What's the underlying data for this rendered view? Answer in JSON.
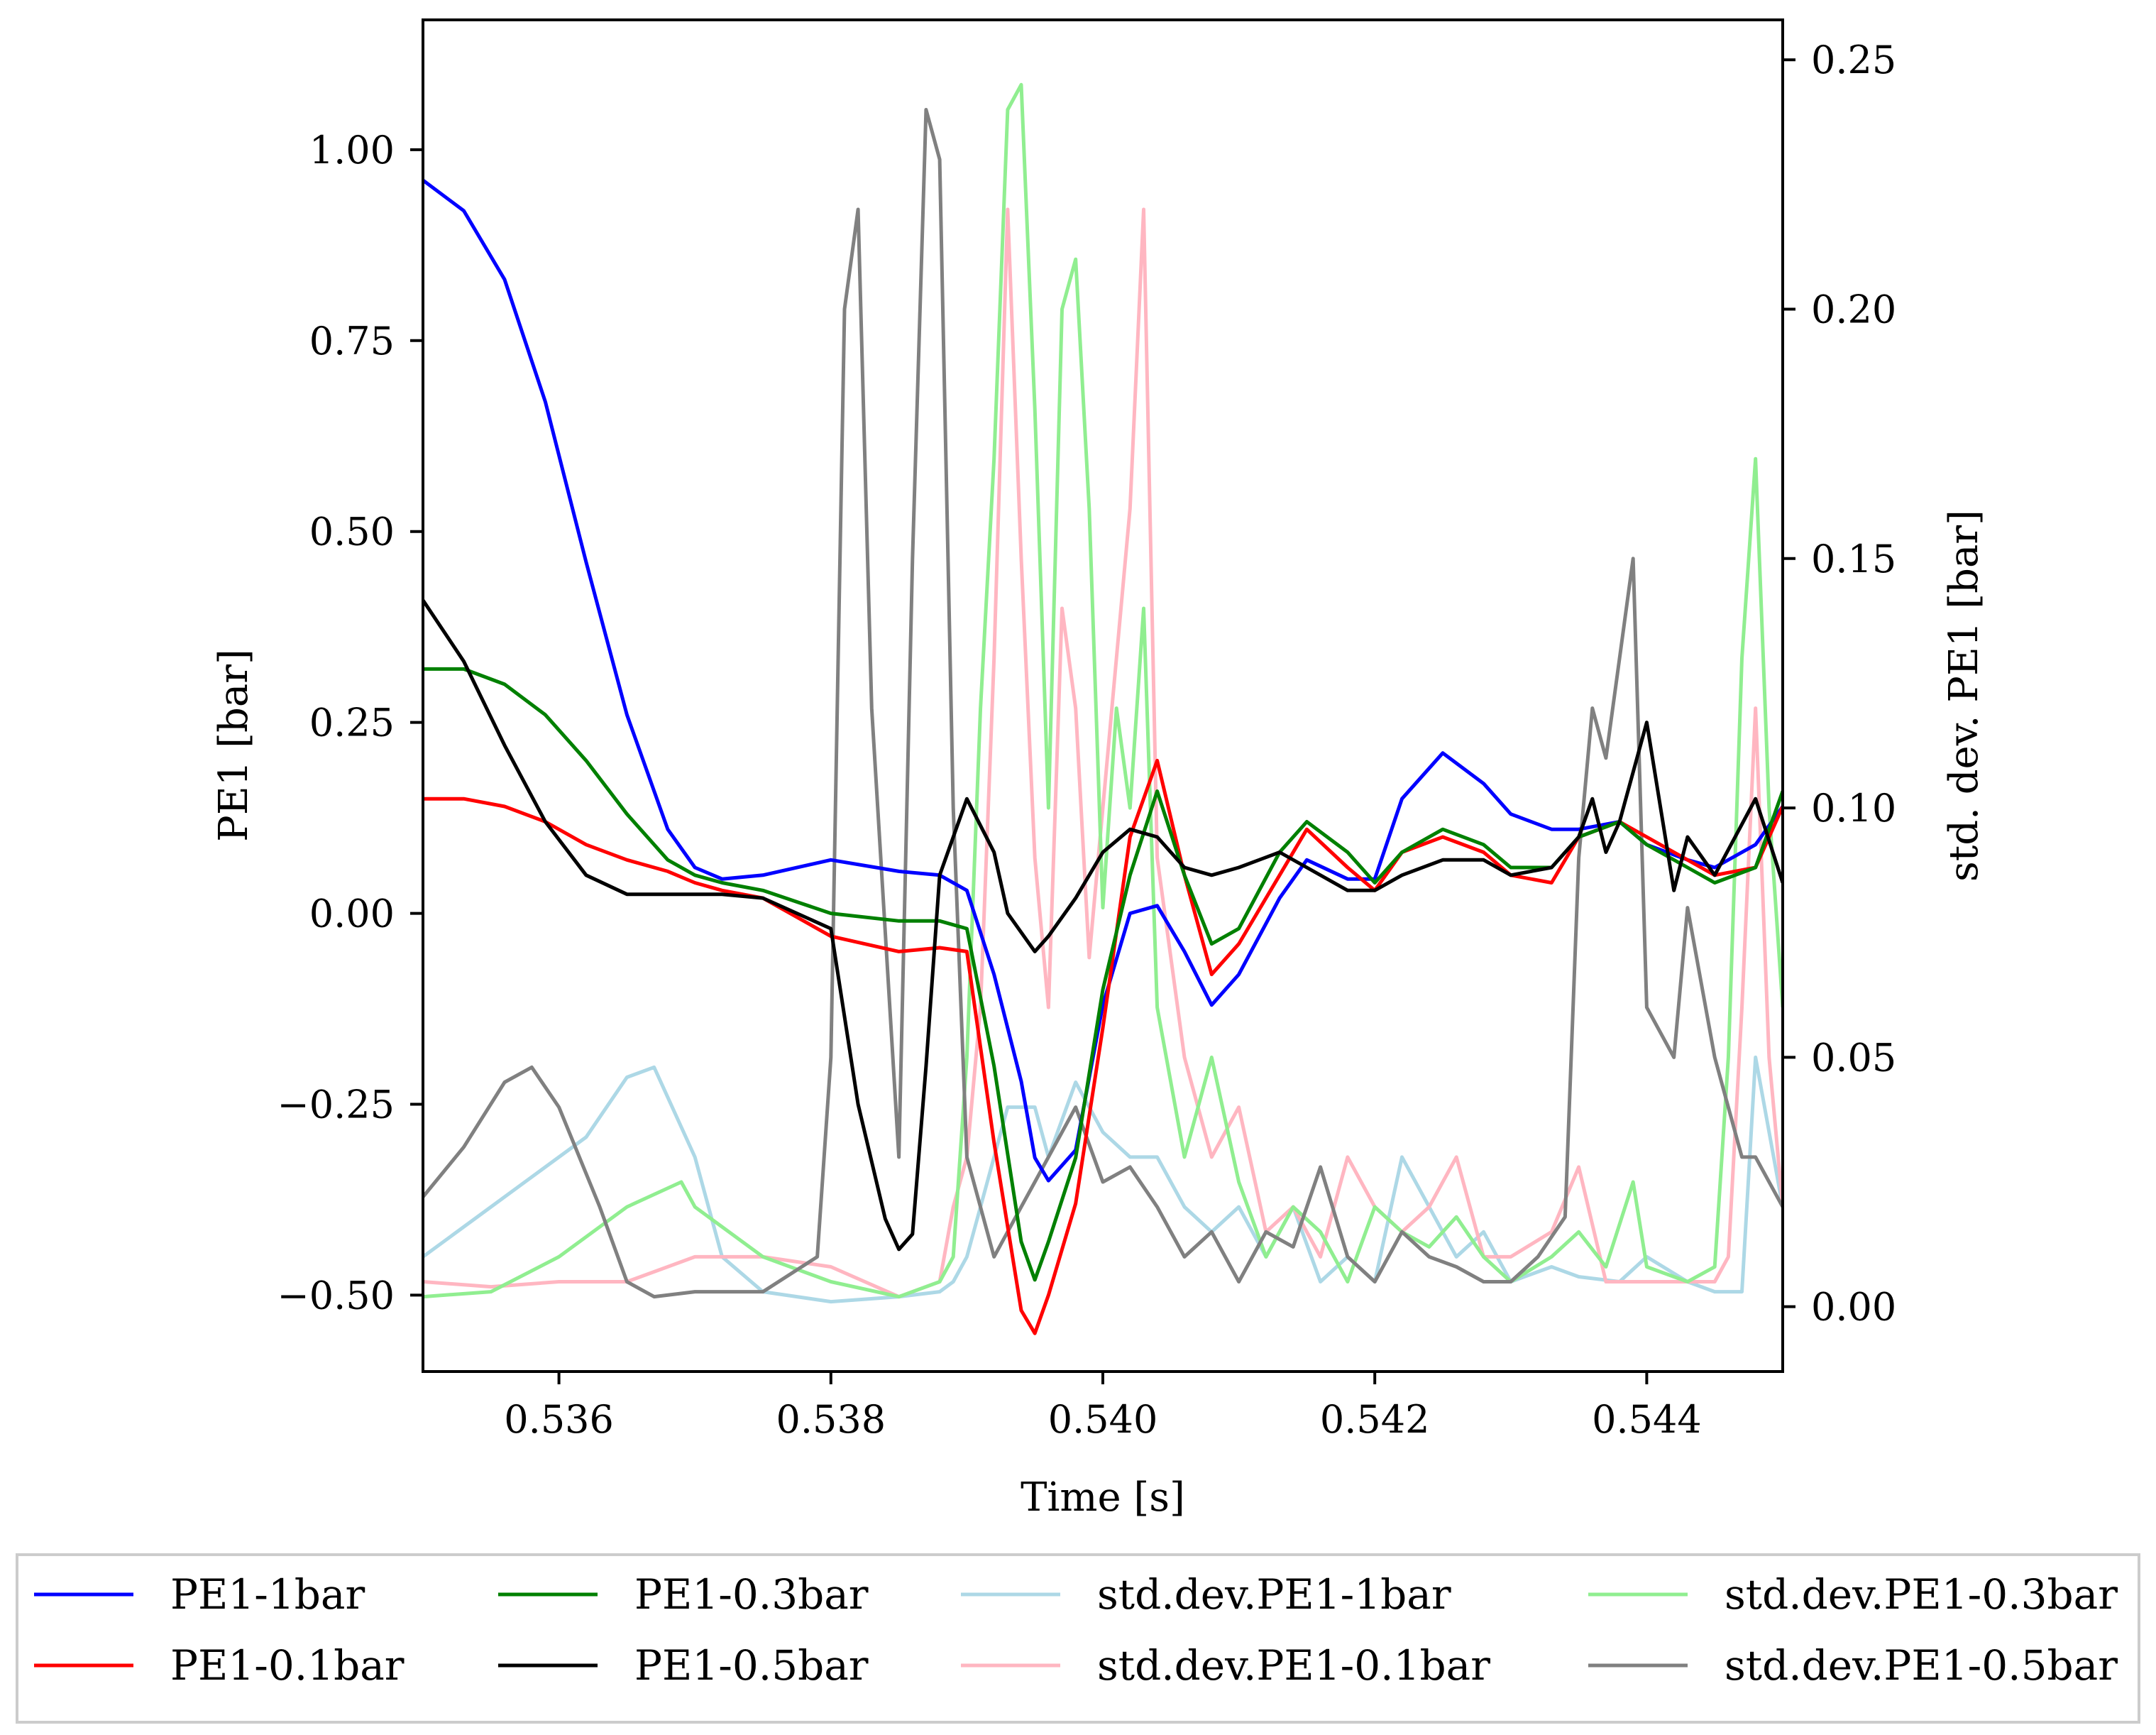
{
  "chart_data": {
    "type": "line",
    "title": "",
    "xlabel": "Time [s]",
    "ylabel": "PE1 [bar]",
    "ylabel_right": "std. dev. PE1 [bar]",
    "xlim": [
      0.535,
      0.545
    ],
    "ylim": [
      -0.6,
      1.17
    ],
    "ylim_right": [
      -0.013,
      0.258
    ],
    "x_ticks": [
      0.536,
      0.538,
      0.54,
      0.542,
      0.544
    ],
    "x_tick_labels": [
      "0.536",
      "0.538",
      "0.540",
      "0.542",
      "0.544"
    ],
    "y_ticks": [
      1.0,
      0.75,
      0.5,
      0.25,
      0.0,
      -0.25,
      -0.5
    ],
    "y_tick_labels": [
      "1.00",
      "0.75",
      "0.50",
      "0.25",
      "0.00",
      "−0.25",
      "−0.50"
    ],
    "y_right_ticks": [
      0.25,
      0.2,
      0.15,
      0.1,
      0.05,
      0.0
    ],
    "y_right_tick_labels": [
      "0.25",
      "0.20",
      "0.15",
      "0.10",
      "0.05",
      "0.00"
    ],
    "grid": false,
    "legend_position": "below",
    "series": [
      {
        "name": "PE1-1bar",
        "axis": "left",
        "color": "#0000ff",
        "x": [
          0.535,
          0.5353,
          0.5356,
          0.5359,
          0.5362,
          0.5365,
          0.5368,
          0.537,
          0.5372,
          0.5375,
          0.538,
          0.5385,
          0.5388,
          0.539,
          0.5392,
          0.5394,
          0.5395,
          0.5396,
          0.5398,
          0.54,
          0.5402,
          0.5404,
          0.5406,
          0.5408,
          0.541,
          0.5413,
          0.5415,
          0.5418,
          0.542,
          0.5422,
          0.5425,
          0.5428,
          0.543,
          0.5433,
          0.5435,
          0.5438,
          0.544,
          0.5443,
          0.5445,
          0.5448,
          0.545
        ],
        "values": [
          0.96,
          0.92,
          0.83,
          0.67,
          0.46,
          0.26,
          0.11,
          0.06,
          0.045,
          0.05,
          0.07,
          0.055,
          0.05,
          0.03,
          -0.08,
          -0.22,
          -0.32,
          -0.35,
          -0.31,
          -0.12,
          0.0,
          0.01,
          -0.05,
          -0.12,
          -0.08,
          0.02,
          0.07,
          0.045,
          0.045,
          0.15,
          0.21,
          0.17,
          0.13,
          0.11,
          0.11,
          0.12,
          0.09,
          0.07,
          0.06,
          0.09,
          0.14
        ]
      },
      {
        "name": "PE1-0.1bar",
        "axis": "left",
        "color": "#ff0000",
        "x": [
          0.535,
          0.5353,
          0.5356,
          0.5359,
          0.5362,
          0.5365,
          0.5368,
          0.537,
          0.5372,
          0.5375,
          0.538,
          0.5385,
          0.5388,
          0.539,
          0.5392,
          0.5394,
          0.5395,
          0.5396,
          0.5398,
          0.54,
          0.5402,
          0.5404,
          0.5406,
          0.5408,
          0.541,
          0.5413,
          0.5415,
          0.5418,
          0.542,
          0.5422,
          0.5425,
          0.5428,
          0.543,
          0.5433,
          0.5435,
          0.5438,
          0.544,
          0.5443,
          0.5445,
          0.5448,
          0.545
        ],
        "values": [
          0.15,
          0.15,
          0.14,
          0.12,
          0.09,
          0.07,
          0.055,
          0.04,
          0.03,
          0.02,
          -0.03,
          -0.05,
          -0.045,
          -0.05,
          -0.3,
          -0.52,
          -0.55,
          -0.5,
          -0.38,
          -0.15,
          0.1,
          0.2,
          0.05,
          -0.08,
          -0.04,
          0.05,
          0.11,
          0.06,
          0.03,
          0.08,
          0.1,
          0.08,
          0.05,
          0.04,
          0.1,
          0.12,
          0.1,
          0.07,
          0.05,
          0.06,
          0.14
        ]
      },
      {
        "name": "PE1-0.3bar",
        "axis": "left",
        "color": "#008000",
        "x": [
          0.535,
          0.5353,
          0.5356,
          0.5359,
          0.5362,
          0.5365,
          0.5368,
          0.537,
          0.5372,
          0.5375,
          0.538,
          0.5385,
          0.5388,
          0.539,
          0.5392,
          0.5394,
          0.5395,
          0.5396,
          0.5398,
          0.54,
          0.5402,
          0.5404,
          0.5406,
          0.5408,
          0.541,
          0.5413,
          0.5415,
          0.5418,
          0.542,
          0.5422,
          0.5425,
          0.5428,
          0.543,
          0.5433,
          0.5435,
          0.5438,
          0.544,
          0.5443,
          0.5445,
          0.5448,
          0.545
        ],
        "values": [
          0.32,
          0.32,
          0.3,
          0.26,
          0.2,
          0.13,
          0.07,
          0.05,
          0.04,
          0.03,
          0.0,
          -0.01,
          -0.01,
          -0.02,
          -0.2,
          -0.43,
          -0.48,
          -0.43,
          -0.32,
          -0.1,
          0.05,
          0.16,
          0.05,
          -0.04,
          -0.02,
          0.08,
          0.12,
          0.08,
          0.04,
          0.08,
          0.11,
          0.09,
          0.06,
          0.06,
          0.1,
          0.12,
          0.09,
          0.06,
          0.04,
          0.06,
          0.16
        ]
      },
      {
        "name": "PE1-0.5bar",
        "axis": "left",
        "color": "#000000",
        "x": [
          0.535,
          0.5353,
          0.5356,
          0.5359,
          0.5362,
          0.5365,
          0.5368,
          0.537,
          0.5372,
          0.5375,
          0.538,
          0.5382,
          0.5384,
          0.5385,
          0.5386,
          0.5387,
          0.5388,
          0.539,
          0.5392,
          0.5393,
          0.5395,
          0.5396,
          0.5398,
          0.54,
          0.5402,
          0.5404,
          0.5406,
          0.5408,
          0.541,
          0.5413,
          0.5415,
          0.5418,
          0.542,
          0.5422,
          0.5425,
          0.5428,
          0.543,
          0.5433,
          0.5435,
          0.5436,
          0.5437,
          0.5438,
          0.544,
          0.5442,
          0.5443,
          0.5445,
          0.5448,
          0.545
        ],
        "values": [
          0.41,
          0.33,
          0.22,
          0.12,
          0.05,
          0.025,
          0.025,
          0.025,
          0.025,
          0.02,
          -0.02,
          -0.25,
          -0.4,
          -0.44,
          -0.42,
          -0.2,
          0.05,
          0.15,
          0.08,
          0.0,
          -0.05,
          -0.03,
          0.02,
          0.08,
          0.11,
          0.1,
          0.06,
          0.05,
          0.06,
          0.08,
          0.06,
          0.03,
          0.03,
          0.05,
          0.07,
          0.07,
          0.05,
          0.06,
          0.1,
          0.15,
          0.08,
          0.12,
          0.25,
          0.03,
          0.1,
          0.05,
          0.15,
          0.04
        ]
      },
      {
        "name": "std.dev.PE1-1bar",
        "axis": "right",
        "color": "#add8e6",
        "x": [
          0.535,
          0.5354,
          0.5357,
          0.5362,
          0.5365,
          0.5367,
          0.537,
          0.5372,
          0.5375,
          0.538,
          0.5385,
          0.5388,
          0.5389,
          0.539,
          0.5391,
          0.5393,
          0.5395,
          0.5396,
          0.5398,
          0.54,
          0.5402,
          0.5404,
          0.5406,
          0.5408,
          0.541,
          0.5412,
          0.5414,
          0.5416,
          0.5418,
          0.542,
          0.5422,
          0.5424,
          0.5426,
          0.5428,
          0.543,
          0.5433,
          0.5435,
          0.5438,
          0.544,
          0.5443,
          0.5445,
          0.5447,
          0.5448,
          0.545
        ],
        "values": [
          0.01,
          0.018,
          0.024,
          0.034,
          0.046,
          0.048,
          0.03,
          0.01,
          0.003,
          0.001,
          0.002,
          0.003,
          0.005,
          0.01,
          0.02,
          0.04,
          0.04,
          0.03,
          0.045,
          0.035,
          0.03,
          0.03,
          0.02,
          0.015,
          0.02,
          0.01,
          0.02,
          0.005,
          0.01,
          0.005,
          0.03,
          0.02,
          0.01,
          0.015,
          0.005,
          0.008,
          0.006,
          0.005,
          0.01,
          0.005,
          0.003,
          0.003,
          0.05,
          0.02
        ]
      },
      {
        "name": "std.dev.PE1-0.1bar",
        "axis": "right",
        "color": "#ffb6c1",
        "x": [
          0.535,
          0.5355,
          0.536,
          0.5365,
          0.537,
          0.5375,
          0.538,
          0.5385,
          0.5388,
          0.5389,
          0.539,
          0.5391,
          0.5392,
          0.5393,
          0.5394,
          0.5395,
          0.5396,
          0.5397,
          0.5398,
          0.5399,
          0.54,
          0.5402,
          0.5403,
          0.5404,
          0.5406,
          0.5408,
          0.541,
          0.5412,
          0.5414,
          0.5416,
          0.5418,
          0.542,
          0.5422,
          0.5424,
          0.5426,
          0.5428,
          0.543,
          0.5433,
          0.5435,
          0.5437,
          0.544,
          0.5443,
          0.5445,
          0.5446,
          0.5447,
          0.5448,
          0.5449,
          0.545
        ],
        "values": [
          0.005,
          0.004,
          0.005,
          0.005,
          0.01,
          0.01,
          0.008,
          0.002,
          0.005,
          0.02,
          0.03,
          0.06,
          0.13,
          0.22,
          0.15,
          0.09,
          0.06,
          0.14,
          0.12,
          0.07,
          0.1,
          0.16,
          0.22,
          0.09,
          0.05,
          0.03,
          0.04,
          0.015,
          0.02,
          0.01,
          0.03,
          0.02,
          0.015,
          0.02,
          0.03,
          0.01,
          0.01,
          0.015,
          0.028,
          0.005,
          0.005,
          0.005,
          0.005,
          0.01,
          0.06,
          0.12,
          0.05,
          0.02
        ]
      },
      {
        "name": "std.dev.PE1-0.3bar",
        "axis": "right",
        "color": "#90ee90",
        "x": [
          0.535,
          0.5355,
          0.536,
          0.5365,
          0.5369,
          0.537,
          0.5375,
          0.538,
          0.5385,
          0.5388,
          0.5389,
          0.539,
          0.5391,
          0.5392,
          0.5393,
          0.5394,
          0.5395,
          0.5396,
          0.5397,
          0.5398,
          0.5399,
          0.54,
          0.5401,
          0.5402,
          0.5403,
          0.5404,
          0.5406,
          0.5408,
          0.541,
          0.5412,
          0.5414,
          0.5416,
          0.5418,
          0.542,
          0.5422,
          0.5424,
          0.5426,
          0.5428,
          0.543,
          0.5433,
          0.5435,
          0.5437,
          0.5439,
          0.544,
          0.5443,
          0.5445,
          0.5446,
          0.5447,
          0.5448,
          0.5449,
          0.545
        ],
        "values": [
          0.002,
          0.003,
          0.01,
          0.02,
          0.025,
          0.02,
          0.01,
          0.005,
          0.002,
          0.005,
          0.01,
          0.05,
          0.12,
          0.17,
          0.24,
          0.245,
          0.18,
          0.1,
          0.2,
          0.21,
          0.16,
          0.08,
          0.12,
          0.1,
          0.14,
          0.06,
          0.03,
          0.05,
          0.025,
          0.01,
          0.02,
          0.015,
          0.005,
          0.02,
          0.015,
          0.012,
          0.018,
          0.01,
          0.005,
          0.01,
          0.015,
          0.008,
          0.025,
          0.008,
          0.005,
          0.008,
          0.05,
          0.13,
          0.17,
          0.1,
          0.06
        ]
      },
      {
        "name": "std.dev.PE1-0.5bar",
        "axis": "right",
        "color": "#808080",
        "x": [
          0.535,
          0.5353,
          0.5356,
          0.5358,
          0.536,
          0.5363,
          0.5365,
          0.5367,
          0.537,
          0.5375,
          0.5379,
          0.538,
          0.5381,
          0.5382,
          0.5383,
          0.5385,
          0.5386,
          0.5387,
          0.5388,
          0.5389,
          0.539,
          0.5392,
          0.5394,
          0.5395,
          0.5397,
          0.5398,
          0.54,
          0.5402,
          0.5404,
          0.5406,
          0.5408,
          0.541,
          0.5412,
          0.5414,
          0.5416,
          0.5418,
          0.542,
          0.5422,
          0.5424,
          0.5426,
          0.5428,
          0.543,
          0.5432,
          0.5434,
          0.5435,
          0.5436,
          0.5437,
          0.5438,
          0.5439,
          0.544,
          0.5442,
          0.5443,
          0.5445,
          0.5447,
          0.5448,
          0.545
        ],
        "values": [
          0.022,
          0.032,
          0.045,
          0.048,
          0.04,
          0.02,
          0.005,
          0.002,
          0.003,
          0.003,
          0.01,
          0.05,
          0.2,
          0.22,
          0.12,
          0.03,
          0.15,
          0.24,
          0.23,
          0.1,
          0.03,
          0.01,
          0.02,
          0.025,
          0.035,
          0.04,
          0.025,
          0.028,
          0.02,
          0.01,
          0.015,
          0.005,
          0.015,
          0.012,
          0.028,
          0.01,
          0.005,
          0.015,
          0.01,
          0.008,
          0.005,
          0.005,
          0.01,
          0.018,
          0.09,
          0.12,
          0.11,
          0.13,
          0.15,
          0.06,
          0.05,
          0.08,
          0.05,
          0.03,
          0.03,
          0.02
        ]
      }
    ]
  },
  "legend": {
    "items": [
      {
        "label": "PE1-1bar",
        "color": "#0000ff"
      },
      {
        "label": "PE1-0.3bar",
        "color": "#008000"
      },
      {
        "label": "std.dev.PE1-1bar",
        "color": "#add8e6"
      },
      {
        "label": "std.dev.PE1-0.3bar",
        "color": "#90ee90"
      },
      {
        "label": "PE1-0.1bar",
        "color": "#ff0000"
      },
      {
        "label": "PE1-0.5bar",
        "color": "#000000"
      },
      {
        "label": "std.dev.PE1-0.1bar",
        "color": "#ffb6c1"
      },
      {
        "label": "std.dev.PE1-0.5bar",
        "color": "#808080"
      }
    ]
  }
}
